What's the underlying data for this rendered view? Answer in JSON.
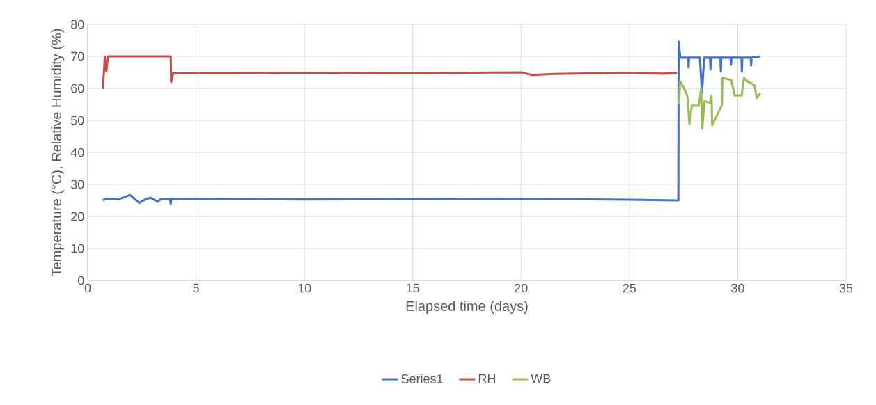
{
  "chart_data": {
    "type": "line",
    "xlabel": "Elapsed time (days)",
    "ylabel": "Temperature (°C), Relative Humidity (%)",
    "xlim": [
      0,
      35
    ],
    "xticks": [
      0,
      5,
      10,
      15,
      20,
      25,
      30,
      35
    ],
    "ylim": [
      0,
      80
    ],
    "yticks": [
      0,
      10,
      20,
      30,
      40,
      50,
      60,
      70,
      80
    ],
    "grid": true,
    "legend": "bottom",
    "marker": "none",
    "line_style": "solid",
    "series": [
      {
        "name": "Series1",
        "color": "#4472c4",
        "x": [
          0.7,
          0.88,
          1.41,
          1.95,
          2.38,
          2.7,
          2.91,
          3.24,
          3.34,
          3.8,
          3.83,
          3.86,
          5,
          10,
          15,
          20,
          25,
          27.2,
          27.26,
          27.27,
          27.35,
          27.72,
          27.73,
          27.75,
          28.25,
          28.35,
          28.45,
          28.72,
          28.74,
          28.76,
          29.2,
          29.22,
          29.24,
          29.67,
          29.69,
          29.71,
          30.17,
          30.19,
          30.21,
          30.6,
          30.62,
          30.64,
          31.04
        ],
        "values": [
          25.0,
          25.6,
          25.3,
          26.7,
          24.2,
          25.5,
          25.8,
          24.6,
          25.3,
          25.4,
          23.9,
          25.5,
          25.5,
          25.3,
          25.4,
          25.5,
          25.2,
          25.0,
          25.0,
          74.6,
          69.6,
          69.6,
          66.6,
          69.6,
          69.6,
          58.7,
          69.6,
          69.6,
          65.9,
          69.6,
          69.6,
          65.2,
          69.6,
          69.6,
          67.4,
          69.6,
          69.6,
          65.2,
          69.6,
          69.6,
          67.2,
          69.6,
          70.0
        ]
      },
      {
        "name": "RH",
        "color": "#c0504d",
        "x": [
          0.7,
          0.79,
          0.86,
          0.93,
          3.83,
          3.85,
          3.95,
          5,
          10,
          15,
          20,
          20.5,
          21.5,
          25,
          26.5,
          27.2
        ],
        "values": [
          59.8,
          70,
          65.2,
          70,
          70,
          62,
          64.8,
          64.8,
          64.9,
          64.8,
          65.0,
          64.2,
          64.5,
          64.9,
          64.6,
          64.8
        ]
      },
      {
        "name": "WB",
        "color": "#9bbb59",
        "x": [
          27.29,
          27.34,
          27.45,
          27.67,
          27.77,
          27.88,
          28.2,
          28.31,
          28.36,
          28.47,
          28.74,
          28.79,
          28.82,
          29.27,
          29.29,
          29.7,
          29.86,
          30.18,
          30.29,
          30.45,
          30.77,
          30.88,
          31.04
        ],
        "values": [
          55,
          62.2,
          61,
          57.8,
          48.9,
          54.6,
          54.6,
          60,
          47.4,
          56,
          55.5,
          57.8,
          48.5,
          54.8,
          63.3,
          62.6,
          57.8,
          57.8,
          63.3,
          62.2,
          61,
          57,
          58.5
        ]
      }
    ]
  }
}
